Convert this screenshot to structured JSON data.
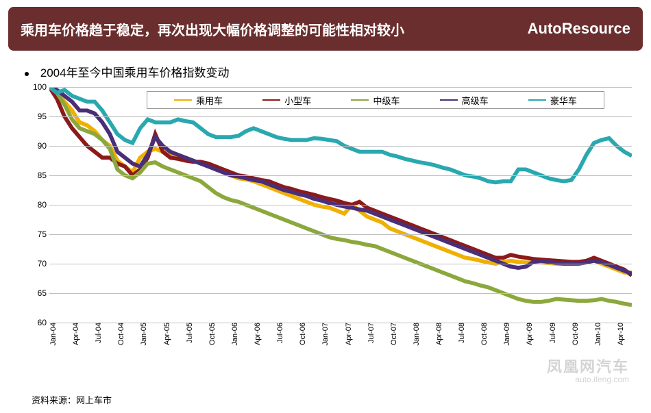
{
  "header": {
    "title": "乘用车价格趋于稳定，再次出现大幅价格调整的可能性相对较小",
    "brand": "AutoResource",
    "bg_color": "#6b2e2e",
    "text_color": "#ffffff"
  },
  "subtitle": "2004年至今中国乘用车价格指数变动",
  "source_label": "资料来源：网上车市",
  "watermark": {
    "line1": "凤凰网汽车",
    "line2": "auto.ifeng.com"
  },
  "chart": {
    "type": "line",
    "background_color": "#ffffff",
    "grid_color": "#bfbfbf",
    "ylim": [
      60,
      100
    ],
    "ytick_step": 5,
    "yticks": [
      60,
      65,
      70,
      75,
      80,
      85,
      90,
      95,
      100
    ],
    "x_count": 78,
    "x_labels": [
      "Jan-04",
      "Apr-04",
      "Jul-04",
      "Oct-04",
      "Jan-05",
      "Apr-05",
      "Jul-05",
      "Oct-05",
      "Jan-06",
      "Apr-06",
      "Jul-06",
      "Oct-06",
      "Jan-07",
      "Apr-07",
      "Jul-07",
      "Oct-07",
      "Jan-08",
      "Apr-08",
      "Jul-08",
      "Oct-08",
      "Jan-09",
      "Apr-09",
      "Jul-09",
      "Oct-09",
      "Jan-10",
      "Apr-10"
    ],
    "x_label_step": 3,
    "line_width": 2,
    "label_fontsize": 12,
    "legend_border": "#999999",
    "series": [
      {
        "name": "乘用车",
        "color": "#f0b000",
        "values": [
          100,
          99,
          97.5,
          96,
          94,
          93.5,
          92.5,
          91,
          90,
          87.5,
          86.5,
          85.5,
          88,
          89,
          89.5,
          89,
          88.5,
          88,
          88,
          87.5,
          87,
          86.8,
          86,
          85.5,
          85,
          84.5,
          84.3,
          84,
          83.5,
          83,
          82.5,
          82,
          81.5,
          81,
          80.5,
          80,
          79.7,
          79.5,
          79,
          78.5,
          80,
          79,
          78,
          77.5,
          77,
          76,
          75.5,
          75,
          74.5,
          74,
          73.5,
          73,
          72.5,
          72,
          71.5,
          71,
          70.8,
          70.5,
          70.2,
          70,
          70.3,
          70.5,
          70.3,
          70.2,
          70.2,
          70.2,
          70.1,
          70,
          70,
          70,
          70,
          70.5,
          70.5,
          70,
          69.5,
          69,
          68.5,
          68.5
        ]
      },
      {
        "name": "小型车",
        "color": "#8b1a1a",
        "values": [
          100,
          98,
          95,
          93,
          91.5,
          90,
          89,
          88,
          88,
          87,
          86.5,
          85,
          86,
          88,
          92,
          89,
          88,
          87.8,
          87.5,
          87.3,
          87.3,
          87,
          86.5,
          86,
          85.5,
          85,
          84.8,
          84.5,
          84.2,
          84,
          83.5,
          83,
          82.7,
          82.3,
          82,
          81.7,
          81.3,
          81,
          80.7,
          80.3,
          80,
          80.5,
          79.5,
          79,
          78.5,
          78,
          77.5,
          77,
          76.5,
          76,
          75.5,
          75,
          74.5,
          74,
          73.5,
          73,
          72.5,
          72,
          71.5,
          71,
          71,
          71.5,
          71.2,
          71,
          70.8,
          70.7,
          70.6,
          70.5,
          70.4,
          70.3,
          70.3,
          70.5,
          71,
          70.5,
          70,
          69.5,
          69,
          68
        ]
      },
      {
        "name": "中级车",
        "color": "#8ca83c",
        "values": [
          100,
          99,
          97,
          94.5,
          93,
          92.5,
          92,
          91,
          89.5,
          86,
          85,
          84.5,
          85.5,
          87,
          87.2,
          86.5,
          86,
          85.5,
          85,
          84.5,
          84,
          83,
          82,
          81.3,
          80.8,
          80.5,
          80,
          79.5,
          79,
          78.5,
          78,
          77.5,
          77,
          76.5,
          76,
          75.5,
          75,
          74.5,
          74.2,
          74,
          73.7,
          73.5,
          73.2,
          73,
          72.5,
          72,
          71.5,
          71,
          70.5,
          70,
          69.5,
          69,
          68.5,
          68,
          67.5,
          67,
          66.7,
          66.3,
          66,
          65.5,
          65,
          64.5,
          64,
          63.7,
          63.5,
          63.5,
          63.7,
          64,
          63.9,
          63.8,
          63.7,
          63.7,
          63.8,
          64,
          63.7,
          63.5,
          63.2,
          63
        ]
      },
      {
        "name": "高级车",
        "color": "#4a2e78",
        "values": [
          100,
          99.5,
          98.5,
          97.5,
          96,
          96,
          95.5,
          94,
          92,
          89,
          88,
          87,
          86.5,
          88.5,
          91.5,
          90,
          89,
          88.5,
          88,
          87.5,
          87,
          86.5,
          86,
          85.5,
          85,
          84.8,
          84.5,
          84.2,
          84,
          83.5,
          83,
          82.5,
          82.2,
          81.8,
          81.5,
          81,
          80.7,
          80.3,
          80,
          79.7,
          79.5,
          79.2,
          79,
          78.5,
          78,
          77.5,
          77,
          76.5,
          76,
          75.5,
          75,
          74.5,
          74,
          73.5,
          73,
          72.5,
          72,
          71.5,
          71,
          70.5,
          70,
          69.5,
          69.3,
          69.5,
          70.3,
          70.5,
          70.3,
          70.1,
          70,
          70,
          70,
          70.2,
          70.5,
          70.2,
          69.8,
          69.3,
          68.8,
          68.3
        ]
      },
      {
        "name": "豪华车",
        "color": "#2aa8b0",
        "values": [
          100,
          99,
          99.5,
          98.5,
          98,
          97.5,
          97.5,
          96,
          94,
          92,
          91,
          90.5,
          93,
          94.5,
          94,
          94,
          94,
          94.5,
          94.2,
          94,
          93,
          92,
          91.5,
          91.5,
          91.5,
          91.7,
          92.5,
          93,
          92.5,
          92,
          91.5,
          91.2,
          91,
          91,
          91,
          91.3,
          91.2,
          91,
          90.8,
          90,
          89.5,
          89,
          89,
          89,
          89,
          88.5,
          88.2,
          87.8,
          87.5,
          87.2,
          87,
          86.7,
          86.3,
          86,
          85.5,
          85,
          84.8,
          84.5,
          84,
          83.8,
          84,
          84,
          86,
          86,
          85.5,
          85,
          84.5,
          84.2,
          84,
          84.2,
          86,
          88.5,
          90.5,
          91,
          91.3,
          90,
          89,
          88.3
        ]
      }
    ]
  }
}
